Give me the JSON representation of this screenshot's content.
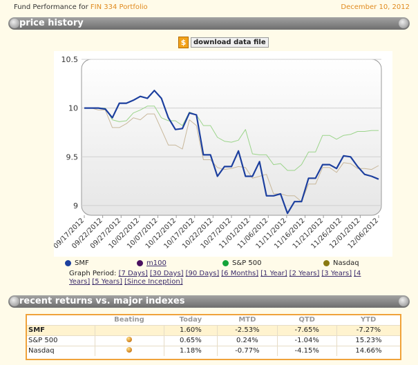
{
  "header": {
    "prefix": "Fund Performance for ",
    "portfolio": "FIN 334 Portfolio",
    "date": "December 10, 2012"
  },
  "sections": {
    "price_history": "price history",
    "recent_returns": "recent returns vs. major indexes"
  },
  "download": {
    "icon": "download-file-icon",
    "label": "download data file"
  },
  "colors": {
    "smf": "#1c3f9e",
    "m100": "#4a1060",
    "sp500": "#14a43a",
    "nasdaq": "#8a7a10",
    "sp_line": "#9bd48a",
    "nasdaq_line": "#c8b79a",
    "accent": "#e08a1e"
  },
  "legend": {
    "smf": "SMF",
    "m100": "m100",
    "sp500": "S&P 500",
    "nasdaq": "Nasdaq"
  },
  "graph_period": {
    "label": "Graph Period:",
    "options": [
      "[7 Days]",
      "[30 Days]",
      "[90 Days]",
      "[6 Months]",
      "[1 Year]",
      "[2 Years]",
      "[3 Years]",
      "[4 Years]",
      "[5 Years]",
      "[Since Inception]"
    ]
  },
  "chart_data": {
    "type": "line",
    "ylim": [
      8.9,
      10.5
    ],
    "yticks": [
      "10.5",
      "10",
      "9.5",
      "9"
    ],
    "xticks": [
      "09/17/2012",
      "09/22/2012",
      "09/27/2012",
      "10/02/2012",
      "10/07/2012",
      "10/12/2012",
      "10/17/2012",
      "10/22/2012",
      "10/27/2012",
      "11/01/2012",
      "11/06/2012",
      "11/11/2012",
      "11/16/2012",
      "11/21/2012",
      "11/26/2012",
      "12/01/2012",
      "12/06/2012"
    ],
    "series": [
      {
        "name": "SMF",
        "values": [
          10.0,
          10.0,
          10.0,
          9.99,
          9.9,
          10.05,
          10.05,
          10.08,
          10.12,
          10.1,
          10.18,
          10.1,
          9.9,
          9.78,
          9.79,
          9.95,
          9.93,
          9.52,
          9.52,
          9.3,
          9.4,
          9.4,
          9.56,
          9.3,
          9.3,
          9.45,
          9.1,
          9.1,
          9.12,
          8.92,
          9.04,
          9.04,
          9.28,
          9.28,
          9.42,
          9.42,
          9.38,
          9.51,
          9.5,
          9.4,
          9.32,
          9.3,
          9.27
        ]
      },
      {
        "name": "S&P 500",
        "values": [
          10.0,
          10.0,
          10.0,
          10.0,
          9.88,
          9.86,
          9.87,
          9.95,
          9.98,
          10.02,
          10.02,
          9.9,
          9.87,
          9.87,
          9.82,
          9.96,
          9.93,
          9.82,
          9.82,
          9.7,
          9.66,
          9.65,
          9.67,
          9.78,
          9.53,
          9.52,
          9.52,
          9.42,
          9.43,
          9.36,
          9.36,
          9.42,
          9.55,
          9.55,
          9.72,
          9.72,
          9.68,
          9.72,
          9.73,
          9.76,
          9.76,
          9.77,
          9.77
        ]
      },
      {
        "name": "Nasdaq",
        "values": [
          10.0,
          10.0,
          9.98,
          9.98,
          9.8,
          9.8,
          9.84,
          9.9,
          9.88,
          9.94,
          9.94,
          9.78,
          9.62,
          9.62,
          9.58,
          9.88,
          9.82,
          9.47,
          9.47,
          9.39,
          9.37,
          9.38,
          9.4,
          9.39,
          9.28,
          9.3,
          9.32,
          9.12,
          9.12,
          9.1,
          9.1,
          9.04,
          9.22,
          9.22,
          9.39,
          9.39,
          9.34,
          9.44,
          9.43,
          9.38,
          9.38,
          9.37,
          9.41
        ]
      }
    ]
  },
  "returns": {
    "columns": [
      "",
      "Beating",
      "Today",
      "MTD",
      "QTD",
      "YTD"
    ],
    "rows": [
      {
        "name": "SMF",
        "beating": "",
        "today": "1.60%",
        "mtd": "-2.53%",
        "qtd": "-7.65%",
        "ytd": "-7.27%"
      },
      {
        "name": "S&P 500",
        "beating": "ball",
        "today": "0.65%",
        "mtd": "0.24%",
        "qtd": "-1.04%",
        "ytd": "15.23%"
      },
      {
        "name": "Nasdaq",
        "beating": "ball",
        "today": "1.18%",
        "mtd": "-0.77%",
        "qtd": "-4.15%",
        "ytd": "14.66%"
      }
    ]
  }
}
